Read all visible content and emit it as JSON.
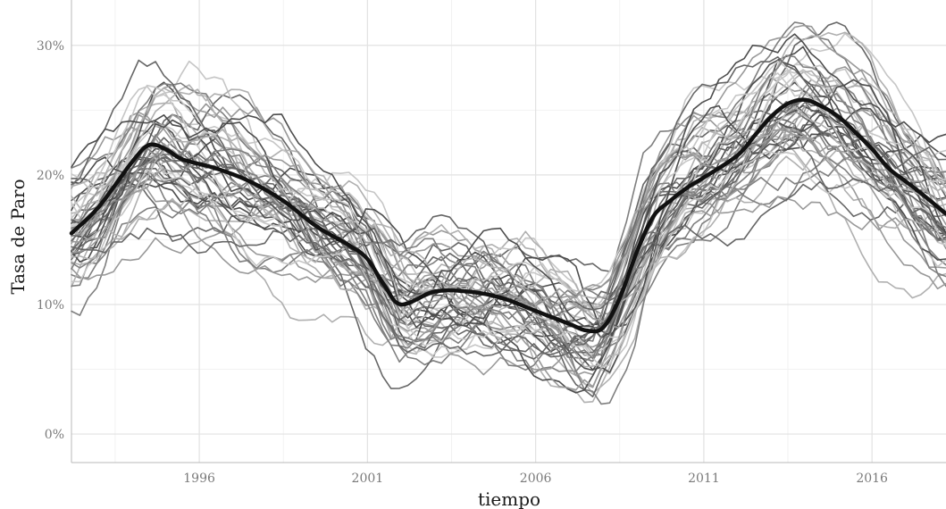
{
  "chart_data": {
    "type": "line",
    "title": "",
    "xlabel": "tiempo",
    "ylabel": "Tasa de Paro",
    "xlim": [
      1992.2,
      2018.2
    ],
    "ylim": [
      -2.2,
      33.5
    ],
    "x_ticks": [
      1996,
      2001,
      2006,
      2011,
      2016
    ],
    "x_tick_labels": [
      "1996",
      "2001",
      "2006",
      "2011",
      "2016"
    ],
    "y_ticks": [
      0,
      10,
      20,
      30
    ],
    "y_tick_labels": [
      "0%",
      "10%",
      "20%",
      "30%"
    ],
    "grid": true,
    "legend": "none",
    "background_series_count": 52,
    "background_series_colors": [
      "#4d4d4d",
      "#666666",
      "#7f7f7f",
      "#999999",
      "#b0b0b0",
      "#c6c6c6"
    ],
    "mean_series": {
      "color": "#111111",
      "x": [
        1992.2,
        1993.0,
        1994.0,
        1994.5,
        1995.0,
        1995.5,
        1996.5,
        1997.5,
        1998.5,
        1999.5,
        2000.5,
        2001.0,
        2001.5,
        2002.0,
        2003.0,
        2004.0,
        2005.0,
        2006.0,
        2007.0,
        2007.5,
        2008.0,
        2008.5,
        2009.0,
        2009.5,
        2010.0,
        2010.5,
        2011.0,
        2012.0,
        2012.5,
        2013.0,
        2013.5,
        2014.0,
        2014.5,
        2015.0,
        2015.5,
        2016.0,
        2016.5,
        2017.0,
        2017.5,
        2018.2
      ],
      "y": [
        15.5,
        17.5,
        21.0,
        22.3,
        22.0,
        21.2,
        20.5,
        19.5,
        18.0,
        16.0,
        14.5,
        13.5,
        11.5,
        10.0,
        11.0,
        11.0,
        10.5,
        9.5,
        8.5,
        8.0,
        8.2,
        10.5,
        14.0,
        16.8,
        18.0,
        19.0,
        19.8,
        21.5,
        23.0,
        24.5,
        25.5,
        25.8,
        25.3,
        24.5,
        23.3,
        22.0,
        20.5,
        19.5,
        18.5,
        17.0
      ]
    }
  }
}
